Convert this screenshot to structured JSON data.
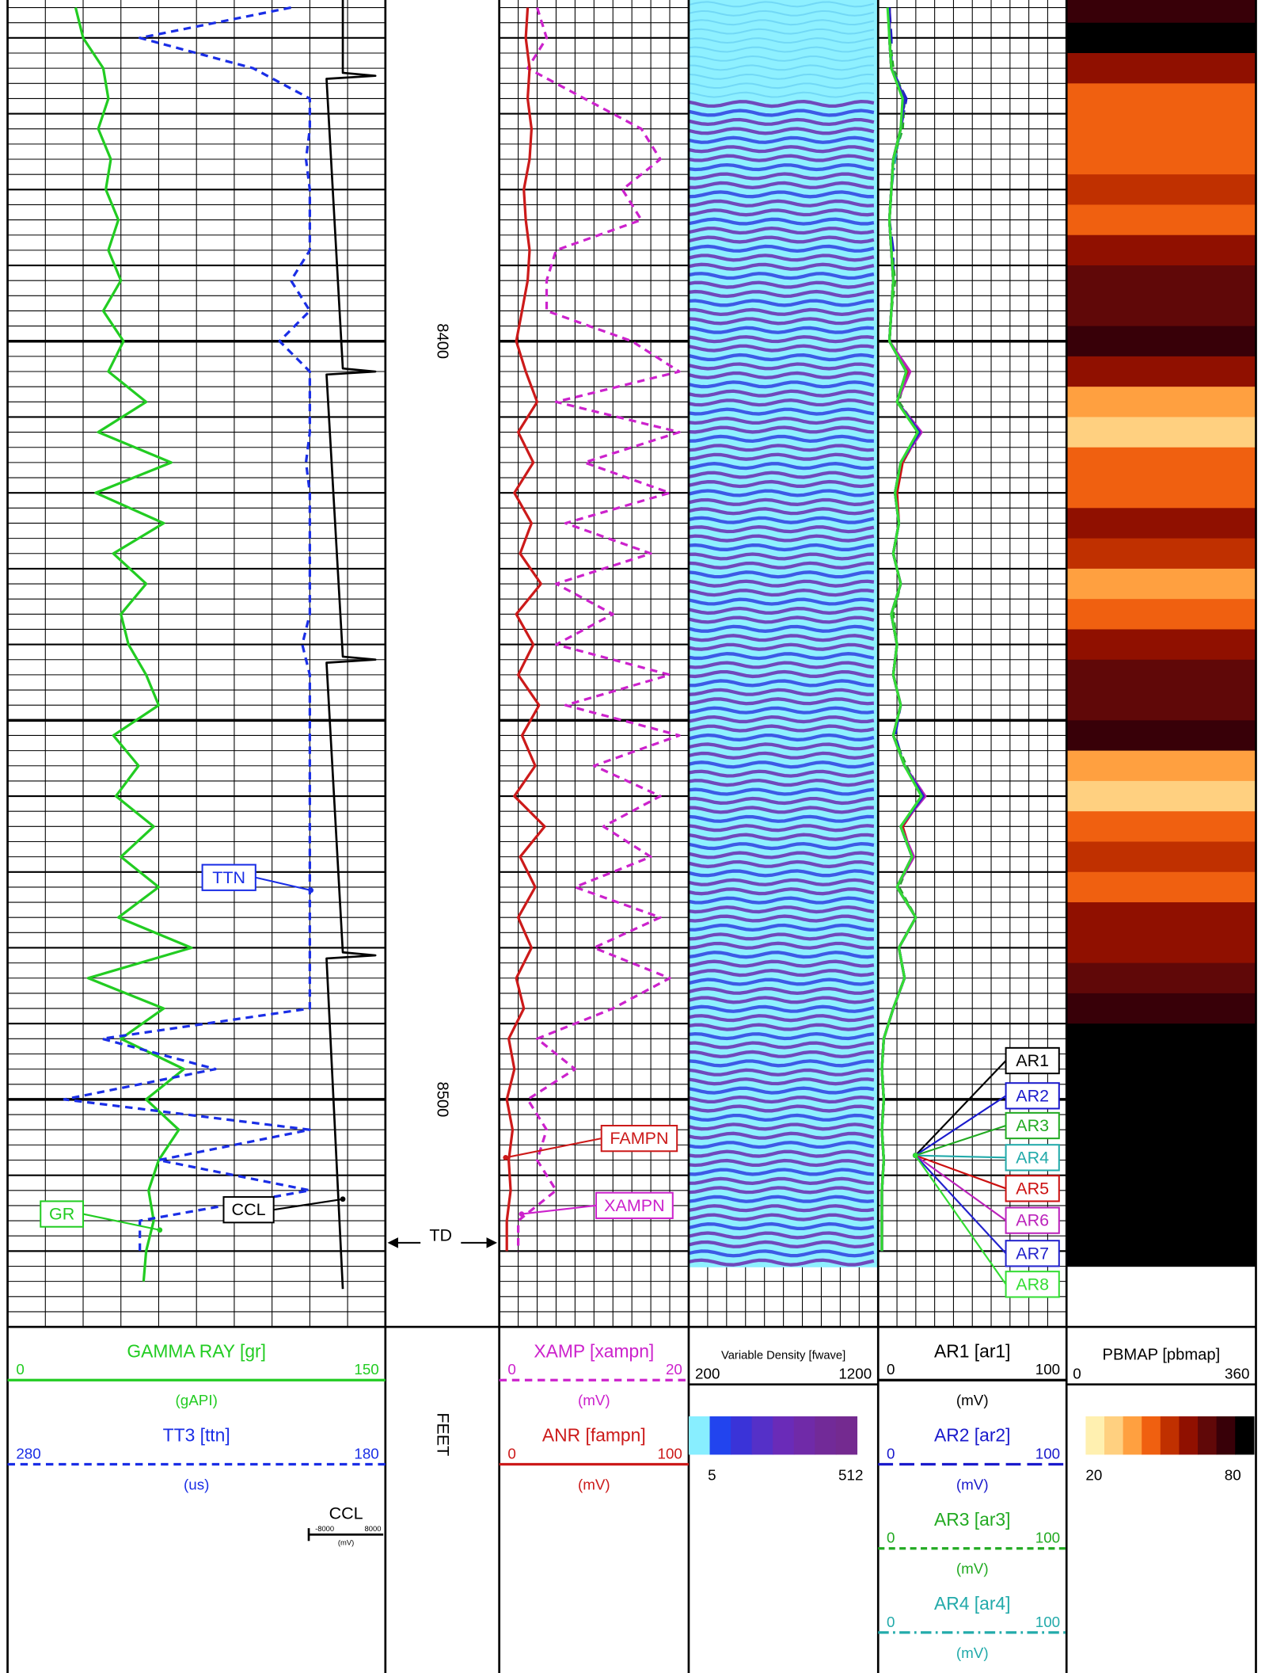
{
  "chart_data": {
    "type": "well_log",
    "depth_range": [
      8355,
      8530
    ],
    "depth_ticks": [
      8400,
      8500
    ],
    "depth_unit": "FEET",
    "td_label": "TD",
    "depth": [
      8356,
      8360,
      8364,
      8368,
      8372,
      8376,
      8380,
      8384,
      8388,
      8392,
      8396,
      8400,
      8404,
      8408,
      8412,
      8416,
      8420,
      8424,
      8428,
      8432,
      8436,
      8440,
      8444,
      8448,
      8452,
      8456,
      8460,
      8464,
      8468,
      8472,
      8476,
      8480,
      8484,
      8488,
      8492,
      8496,
      8500,
      8504,
      8508,
      8512,
      8516,
      8520,
      8524
    ],
    "tracks": [
      {
        "curves": [
          {
            "title": "GAMMA RAY  [gr]",
            "label": "GR",
            "unit": "(gAPI)",
            "xlim": [
              0,
              150
            ],
            "color": "#22cc22",
            "dash": "none",
            "values": [
              27,
              30,
              38,
              40,
              36,
              41,
              39,
              44,
              40,
              45,
              38,
              46,
              40,
              55,
              36,
              65,
              35,
              62,
              42,
              55,
              45,
              48,
              55,
              60,
              42,
              52,
              43,
              58,
              45,
              60,
              44,
              73,
              32,
              62,
              45,
              70,
              55,
              68,
              60,
              56,
              58,
              55,
              54
            ]
          },
          {
            "title": "TT3 [ttn]",
            "label": "TTN",
            "unit": "(us)",
            "xlim": [
              280,
              180
            ],
            "color": "#1a2ee6",
            "dash": "7 5",
            "values": [
              205,
              245,
              215,
              200,
              200,
              201,
              200,
              200,
              200,
              205,
              200,
              208,
              200,
              200,
              200,
              201,
              200,
              200,
              200,
              200,
              200,
              202,
              200,
              200,
              200,
              200,
              200,
              200,
              200,
              200,
              200,
              200,
              200,
              200,
              255,
              225,
              265,
              200,
              240,
              200,
              245,
              245,
              null
            ]
          },
          {
            "title": "CCL",
            "label": "CCL",
            "unit": "(mV)",
            "xlim": [
              -8000,
              8000
            ],
            "color": "#000000",
            "dash": "none",
            "depth": [
              8355,
              8364.6,
              8365,
              8365.4,
              8403.6,
              8404,
              8404.4,
              8441.6,
              8442,
              8442.4,
              8480.6,
              8481,
              8481.4,
              8525
            ],
            "values": [
              0,
              0,
              7000,
              -3500,
              0,
              7000,
              -3500,
              0,
              7000,
              -3500,
              0,
              7000,
              -3500,
              0
            ]
          }
        ]
      },
      {
        "curves": [
          {
            "title": "XAMP [xampn]",
            "label": "XAMPN",
            "unit": "(mV)",
            "xlim": [
              0,
              20
            ],
            "color": "#cc22cc",
            "dash": "7 5",
            "values": [
              4,
              5,
              3,
              9,
              15,
              17,
              13,
              15,
              6,
              5,
              5,
              14,
              19,
              6,
              19,
              9,
              18,
              7,
              16,
              6,
              12,
              6,
              18,
              7,
              19,
              10,
              17,
              11,
              16,
              8,
              17,
              10,
              18,
              12,
              4,
              8,
              3,
              5,
              4,
              6,
              2,
              2,
              null
            ]
          },
          {
            "title": "ANR [fampn]",
            "label": "FAMPN",
            "unit": "(mV)",
            "xlim": [
              0,
              100
            ],
            "color": "#cc1a1a",
            "dash": "none",
            "values": [
              15,
              14,
              16,
              15,
              17,
              16,
              13,
              14,
              16,
              15,
              12,
              9,
              14,
              20,
              10,
              18,
              8,
              17,
              11,
              22,
              9,
              18,
              10,
              21,
              12,
              19,
              8,
              24,
              11,
              19,
              10,
              17,
              9,
              13,
              5,
              8,
              4,
              7,
              5,
              6,
              4,
              4,
              null
            ]
          }
        ]
      },
      {
        "image": "vdl",
        "title": "Variable Density [fwave]",
        "xlim": [
          200,
          1200
        ],
        "palette": [
          "#88eeff",
          "#2244ee",
          "#3a33d8",
          "#5530c8",
          "#6a2bb8",
          "#702aa8",
          "#722a98",
          "#742a90"
        ],
        "palette_range": [
          5,
          512
        ]
      },
      {
        "curves": [
          {
            "title": "AR1 [ar1]",
            "label": "AR1",
            "unit": "(mV)",
            "xlim": [
              0,
              100
            ],
            "color": "#000000",
            "dash": "none",
            "values": [
              6,
              6,
              7,
              14,
              12,
              8,
              7,
              6,
              7,
              8,
              7,
              6,
              15,
              10,
              22,
              12,
              9,
              11,
              8,
              12,
              7,
              10,
              8,
              12,
              8,
              14,
              24,
              12,
              18,
              10,
              20,
              11,
              14,
              8,
              3,
              2,
              3,
              2,
              3,
              2,
              2,
              2,
              null
            ]
          },
          {
            "title": "AR2 [ar2]",
            "label": "AR2",
            "unit": "(mV)",
            "xlim": [
              0,
              100
            ],
            "color": "#1a1acc",
            "dash": "14 6",
            "values": [
              6,
              7,
              7,
              15,
              12,
              8,
              7,
              6,
              8,
              8,
              7,
              6,
              16,
              10,
              23,
              12,
              9,
              11,
              8,
              12,
              7,
              10,
              8,
              12,
              9,
              14,
              25,
              12,
              18,
              10,
              20,
              11,
              14,
              8,
              3,
              2,
              3,
              2,
              3,
              2,
              2,
              2,
              null
            ]
          },
          {
            "title": "AR3 [ar3]",
            "label": "AR3",
            "unit": "(mV)",
            "xlim": [
              0,
              100
            ],
            "color": "#22aa22",
            "dash": "6 4",
            "values": [
              6,
              6,
              8,
              14,
              13,
              8,
              7,
              6,
              7,
              9,
              7,
              6,
              15,
              11,
              22,
              13,
              9,
              11,
              8,
              12,
              8,
              10,
              8,
              12,
              8,
              15,
              24,
              12,
              18,
              11,
              20,
              11,
              14,
              8,
              3,
              2,
              3,
              2,
              3,
              2,
              2,
              2,
              null
            ]
          },
          {
            "title": "AR4 [ar4]",
            "label": "AR4",
            "unit": "(mV)",
            "xlim": [
              0,
              100
            ],
            "color": "#22aaaa",
            "dash": "10 4 2 4",
            "values": [
              6,
              6,
              7,
              14,
              12,
              9,
              7,
              6,
              7,
              8,
              7,
              6,
              15,
              10,
              22,
              12,
              9,
              11,
              8,
              12,
              7,
              10,
              8,
              12,
              8,
              14,
              24,
              12,
              18,
              10,
              20,
              11,
              14,
              8,
              3,
              2,
              3,
              2,
              3,
              2,
              2,
              2,
              null
            ]
          },
          {
            "label": "AR5",
            "xlim": [
              0,
              100
            ],
            "color": "#cc1111",
            "dash": "none",
            "values": [
              6,
              6,
              7,
              14,
              12,
              8,
              7,
              6,
              7,
              8,
              7,
              6,
              16,
              10,
              22,
              13,
              10,
              11,
              8,
              12,
              7,
              10,
              8,
              12,
              8,
              14,
              24,
              13,
              18,
              10,
              20,
              11,
              14,
              8,
              3,
              2,
              3,
              2,
              3,
              2,
              2,
              2,
              null
            ]
          },
          {
            "label": "AR6",
            "xlim": [
              0,
              100
            ],
            "color": "#bb22bb",
            "dash": "none",
            "values": [
              6,
              6,
              7,
              14,
              12,
              8,
              7,
              6,
              7,
              8,
              7,
              6,
              17,
              10,
              23,
              12,
              9,
              11,
              8,
              12,
              7,
              10,
              8,
              12,
              8,
              14,
              25,
              12,
              19,
              10,
              20,
              11,
              14,
              8,
              3,
              2,
              3,
              2,
              3,
              2,
              2,
              2,
              null
            ]
          },
          {
            "label": "AR7",
            "xlim": [
              0,
              100
            ],
            "color": "#2222cc",
            "dash": "none",
            "values": [
              6,
              6,
              7,
              14,
              12,
              8,
              7,
              6,
              7,
              8,
              7,
              6,
              15,
              10,
              22,
              12,
              9,
              11,
              8,
              12,
              7,
              10,
              8,
              12,
              8,
              14,
              24,
              12,
              18,
              10,
              20,
              11,
              14,
              8,
              3,
              2,
              3,
              2,
              3,
              2,
              2,
              2,
              null
            ]
          },
          {
            "label": "AR8",
            "xlim": [
              0,
              100
            ],
            "color": "#33dd33",
            "dash": "none",
            "values": [
              5,
              6,
              7,
              13,
              12,
              8,
              7,
              6,
              7,
              8,
              7,
              6,
              15,
              10,
              21,
              12,
              9,
              11,
              8,
              12,
              7,
              10,
              8,
              12,
              8,
              14,
              23,
              12,
              18,
              10,
              20,
              11,
              14,
              8,
              3,
              2,
              3,
              2,
              3,
              2,
              2,
              2,
              null
            ]
          }
        ]
      },
      {
        "image": "pbmap",
        "title": "PBMAP [pbmap]",
        "xlim": [
          0,
          360
        ],
        "palette": [
          "#fff0b0",
          "#ffd080",
          "#ffa040",
          "#f06010",
          "#c03000",
          "#901000",
          "#600808",
          "#380008",
          "#000000"
        ],
        "palette_range": [
          20,
          80
        ],
        "values": [
          72,
          78,
          60,
          45,
          40,
          42,
          48,
          45,
          55,
          65,
          68,
          70,
          55,
          35,
          30,
          40,
          45,
          60,
          50,
          35,
          40,
          58,
          62,
          68,
          70,
          35,
          30,
          40,
          48,
          45,
          55,
          60,
          65,
          75,
          80,
          80,
          80,
          80,
          78,
          80,
          80,
          80,
          null
        ]
      }
    ]
  }
}
